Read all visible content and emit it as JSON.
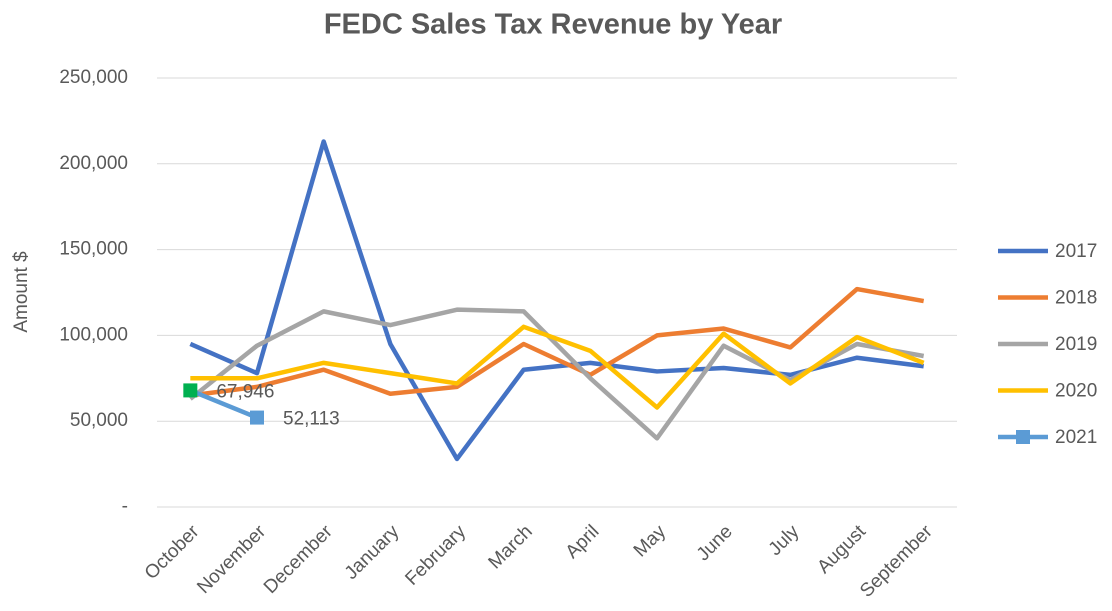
{
  "chart_data": {
    "type": "line",
    "title": "FEDC Sales Tax Revenue by Year",
    "ylabel": "Amount $",
    "categories": [
      "October",
      "November",
      "December",
      "January",
      "February",
      "March",
      "April",
      "May",
      "June",
      "July",
      "August",
      "September"
    ],
    "ylim": [
      0,
      250000
    ],
    "yticks": [
      {
        "value": 0,
        "label": "-"
      },
      {
        "value": 50000,
        "label": "50,000"
      },
      {
        "value": 100000,
        "label": "100,000"
      },
      {
        "value": 150000,
        "label": "150,000"
      },
      {
        "value": 200000,
        "label": "200,000"
      },
      {
        "value": 250000,
        "label": "250,000"
      }
    ],
    "grid": true,
    "legend": "right",
    "series": [
      {
        "name": "2017",
        "color": "#4472c4",
        "values": [
          95000,
          78000,
          213000,
          95000,
          28000,
          80000,
          84000,
          79000,
          81000,
          77000,
          87000,
          82000
        ]
      },
      {
        "name": "2018",
        "color": "#ed7d31",
        "values": [
          65000,
          70000,
          80000,
          66000,
          70000,
          95000,
          77000,
          100000,
          104000,
          93000,
          127000,
          120000
        ]
      },
      {
        "name": "2019",
        "color": "#a5a5a5",
        "values": [
          63000,
          94000,
          114000,
          106000,
          115000,
          114000,
          75000,
          40000,
          94000,
          74000,
          95000,
          88000
        ]
      },
      {
        "name": "2020",
        "color": "#ffc000",
        "values": [
          75000,
          75000,
          84000,
          78000,
          72000,
          105000,
          91000,
          58000,
          101000,
          72000,
          99000,
          84000
        ]
      },
      {
        "name": "2021",
        "color": "#5b9bd5",
        "marker": "square",
        "marker_colors": [
          "#00b050",
          "#5b9bd5"
        ],
        "values": [
          67946,
          52113,
          null,
          null,
          null,
          null,
          null,
          null,
          null,
          null,
          null,
          null
        ],
        "value_labels": [
          "67,946",
          "52,113",
          null,
          null,
          null,
          null,
          null,
          null,
          null,
          null,
          null,
          null
        ]
      }
    ]
  }
}
